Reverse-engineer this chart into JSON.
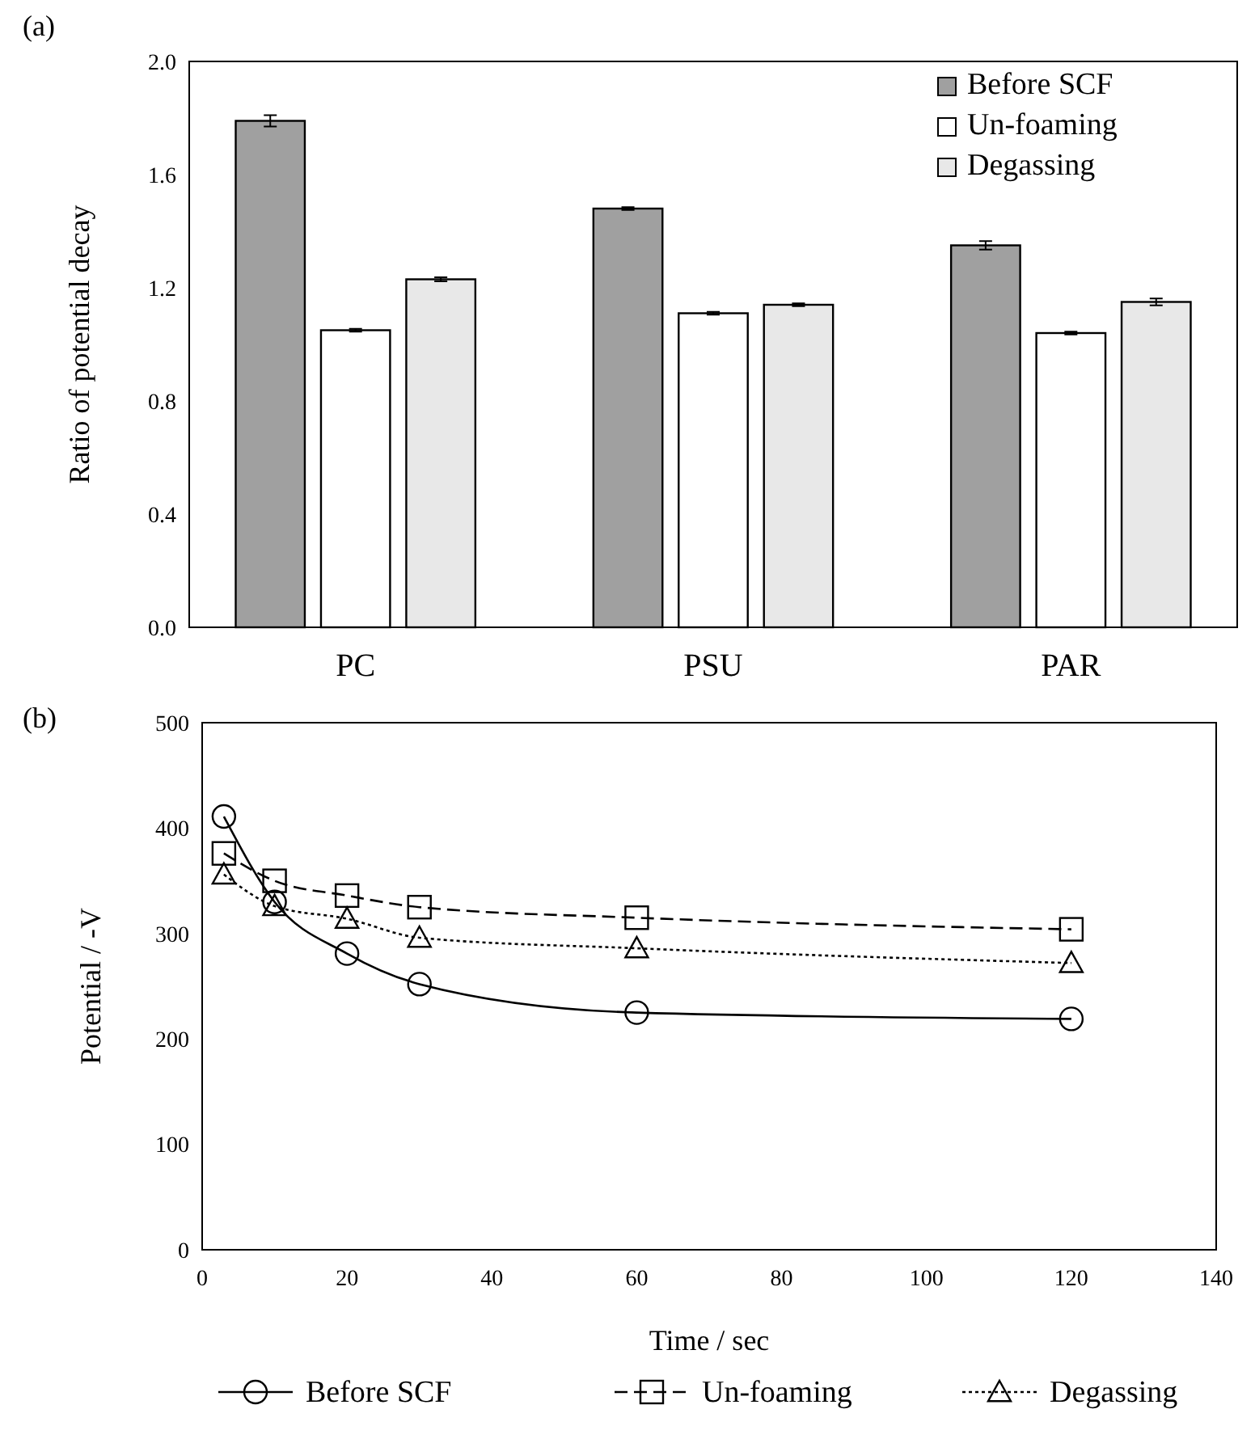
{
  "chart_data": [
    {
      "type": "bar",
      "title": "(a)",
      "ylabel": "Ratio of potential decay",
      "categories": [
        "PC",
        "PSU",
        "PAR"
      ],
      "ylim": [
        0,
        2
      ],
      "yticks": [
        {
          "value": 0,
          "label": "0.0"
        },
        {
          "value": 0.4,
          "label": "0.4"
        },
        {
          "value": 0.8,
          "label": "0.8"
        },
        {
          "value": 1.2,
          "label": "1.2"
        },
        {
          "value": 1.6,
          "label": "1.6"
        },
        {
          "value": 2,
          "label": "2.0"
        }
      ],
      "legend": "top right",
      "grid": false,
      "series": [
        {
          "name": "Before SCF",
          "color": "#a0a0a0",
          "values": [
            1.79,
            1.48,
            1.35
          ],
          "errors": [
            0.02,
            0.005,
            0.015
          ]
        },
        {
          "name": "Un-foaming",
          "color": "#ffffff",
          "values": [
            1.05,
            1.11,
            1.04
          ],
          "errors": [
            0.005,
            0.005,
            0.005
          ]
        },
        {
          "name": "Degassing",
          "color": "#e8e8e8",
          "values": [
            1.23,
            1.14,
            1.15
          ],
          "errors": [
            0.007,
            0.005,
            0.012
          ]
        }
      ]
    },
    {
      "type": "line",
      "title": "(b)",
      "xlabel": "Time / sec",
      "ylabel": "Potential / -V",
      "x": [
        3,
        10,
        20,
        30,
        60,
        120
      ],
      "xlim": [
        0,
        140
      ],
      "xticks": [
        0,
        20,
        40,
        60,
        80,
        100,
        120,
        140
      ],
      "ylim": [
        0,
        500
      ],
      "yticks": [
        0,
        100,
        200,
        300,
        400,
        500
      ],
      "legend": "bottom",
      "grid": false,
      "series": [
        {
          "name": "Before SCF",
          "color": "#000000",
          "marker": "circle",
          "line_style": "solid",
          "values": [
            411,
            330,
            281,
            252,
            225,
            219
          ]
        },
        {
          "name": "Un-foaming",
          "color": "#000000",
          "marker": "square",
          "line_style": "dashed",
          "values": [
            376,
            350,
            336,
            325,
            315,
            304
          ]
        },
        {
          "name": "Degassing",
          "color": "#000000",
          "marker": "triangle",
          "line_style": "dotted",
          "values": [
            356,
            326,
            314,
            296,
            286,
            272
          ]
        }
      ]
    }
  ]
}
